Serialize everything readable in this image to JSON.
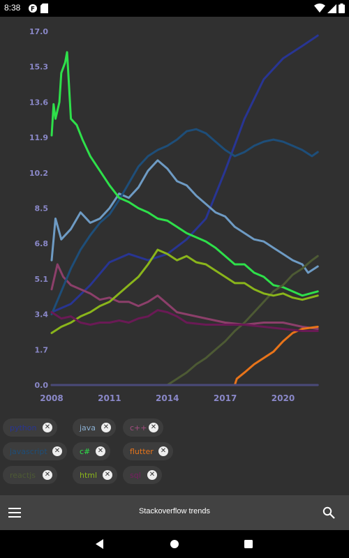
{
  "status_bar": {
    "time": "8:38",
    "left_icons": [
      "notification-icon",
      "sd-card-icon"
    ],
    "right_icons": [
      "wifi-icon",
      "signal-icon",
      "battery-icon"
    ]
  },
  "chart_data": {
    "type": "line",
    "title": "",
    "xlabel": "",
    "ylabel": "",
    "x_ticks": [
      "2008",
      "2011",
      "2014",
      "2017",
      "2020"
    ],
    "y_ticks": [
      "0.0",
      "1.7",
      "3.4",
      "5.1",
      "6.8",
      "8.5",
      "10.2",
      "11.9",
      "13.6",
      "15.3",
      "17.0"
    ],
    "xlim": [
      2008,
      2021.9
    ],
    "ylim": [
      0,
      17
    ],
    "grid": false,
    "series": [
      {
        "name": "python",
        "color": "#283593",
        "points": [
          [
            2008,
            3.5
          ],
          [
            2009,
            3.9
          ],
          [
            2010,
            4.8
          ],
          [
            2011,
            5.9
          ],
          [
            2012,
            6.3
          ],
          [
            2013,
            6.0
          ],
          [
            2014,
            6.3
          ],
          [
            2015,
            7.0
          ],
          [
            2016,
            8.0
          ],
          [
            2017,
            10.3
          ],
          [
            2018,
            12.8
          ],
          [
            2019,
            14.7
          ],
          [
            2020,
            15.7
          ],
          [
            2021,
            16.3
          ],
          [
            2021.8,
            16.8
          ]
        ]
      },
      {
        "name": "java",
        "color": "#6e9bc4",
        "points": [
          [
            2008,
            6.0
          ],
          [
            2008.2,
            8.0
          ],
          [
            2008.5,
            7.0
          ],
          [
            2009,
            7.5
          ],
          [
            2009.5,
            8.3
          ],
          [
            2010,
            7.8
          ],
          [
            2010.5,
            8.0
          ],
          [
            2011,
            8.5
          ],
          [
            2011.5,
            9.2
          ],
          [
            2012,
            9.0
          ],
          [
            2012.5,
            9.5
          ],
          [
            2013,
            10.3
          ],
          [
            2013.5,
            10.8
          ],
          [
            2014,
            10.4
          ],
          [
            2014.5,
            9.8
          ],
          [
            2015,
            9.6
          ],
          [
            2015.5,
            9.1
          ],
          [
            2016,
            8.7
          ],
          [
            2016.5,
            8.3
          ],
          [
            2017,
            8.1
          ],
          [
            2017.5,
            7.6
          ],
          [
            2018,
            7.3
          ],
          [
            2018.5,
            7.0
          ],
          [
            2019,
            6.9
          ],
          [
            2019.5,
            6.6
          ],
          [
            2020,
            6.3
          ],
          [
            2020.5,
            6.0
          ],
          [
            2021,
            5.8
          ],
          [
            2021.3,
            5.4
          ],
          [
            2021.8,
            5.7
          ]
        ]
      },
      {
        "name": "c++",
        "color": "#8c3f6a",
        "points": [
          [
            2008,
            4.6
          ],
          [
            2008.3,
            5.8
          ],
          [
            2008.6,
            5.2
          ],
          [
            2009,
            4.8
          ],
          [
            2009.5,
            4.6
          ],
          [
            2010,
            4.4
          ],
          [
            2010.5,
            4.1
          ],
          [
            2011,
            4.2
          ],
          [
            2011.5,
            4.0
          ],
          [
            2012,
            4.0
          ],
          [
            2012.5,
            3.8
          ],
          [
            2013,
            4.0
          ],
          [
            2013.5,
            4.3
          ],
          [
            2014,
            3.9
          ],
          [
            2014.5,
            3.5
          ],
          [
            2015,
            3.4
          ],
          [
            2016,
            3.2
          ],
          [
            2017,
            3.0
          ],
          [
            2018,
            2.9
          ],
          [
            2019,
            3.0
          ],
          [
            2020,
            3.0
          ],
          [
            2021,
            2.8
          ],
          [
            2021.8,
            2.7
          ]
        ]
      },
      {
        "name": "javascript",
        "color": "#1e4e79",
        "points": [
          [
            2008,
            3.4
          ],
          [
            2008.5,
            4.5
          ],
          [
            2009,
            5.6
          ],
          [
            2009.5,
            6.5
          ],
          [
            2010,
            7.2
          ],
          [
            2010.5,
            7.8
          ],
          [
            2011,
            8.2
          ],
          [
            2011.5,
            8.9
          ],
          [
            2012,
            9.7
          ],
          [
            2012.5,
            10.5
          ],
          [
            2013,
            11.0
          ],
          [
            2013.5,
            11.3
          ],
          [
            2014,
            11.5
          ],
          [
            2014.5,
            11.8
          ],
          [
            2015,
            12.2
          ],
          [
            2015.5,
            12.3
          ],
          [
            2016,
            12.1
          ],
          [
            2016.5,
            11.7
          ],
          [
            2017,
            11.3
          ],
          [
            2017.5,
            11.0
          ],
          [
            2018,
            11.2
          ],
          [
            2018.5,
            11.5
          ],
          [
            2019,
            11.7
          ],
          [
            2019.5,
            11.8
          ],
          [
            2020,
            11.7
          ],
          [
            2020.5,
            11.5
          ],
          [
            2021,
            11.3
          ],
          [
            2021.5,
            11.0
          ],
          [
            2021.8,
            11.2
          ]
        ]
      },
      {
        "name": "c#",
        "color": "#2ee04a",
        "points": [
          [
            2008,
            12.0
          ],
          [
            2008.1,
            13.5
          ],
          [
            2008.2,
            12.8
          ],
          [
            2008.4,
            13.6
          ],
          [
            2008.5,
            15.0
          ],
          [
            2008.7,
            15.5
          ],
          [
            2008.8,
            16.0
          ],
          [
            2009,
            12.8
          ],
          [
            2009.3,
            12.5
          ],
          [
            2009.6,
            11.8
          ],
          [
            2010,
            11.0
          ],
          [
            2010.5,
            10.3
          ],
          [
            2011,
            9.6
          ],
          [
            2011.5,
            9.0
          ],
          [
            2012,
            8.8
          ],
          [
            2012.5,
            8.5
          ],
          [
            2013,
            8.3
          ],
          [
            2013.5,
            8.0
          ],
          [
            2014,
            7.9
          ],
          [
            2014.5,
            7.6
          ],
          [
            2015,
            7.3
          ],
          [
            2015.5,
            7.1
          ],
          [
            2016,
            6.9
          ],
          [
            2016.5,
            6.6
          ],
          [
            2017,
            6.2
          ],
          [
            2017.5,
            5.8
          ],
          [
            2018,
            5.8
          ],
          [
            2018.5,
            5.4
          ],
          [
            2019,
            5.2
          ],
          [
            2019.5,
            4.8
          ],
          [
            2020,
            4.7
          ],
          [
            2020.5,
            4.5
          ],
          [
            2021,
            4.3
          ],
          [
            2021.8,
            4.5
          ]
        ]
      },
      {
        "name": "flutter",
        "color": "#e8741a",
        "points": [
          [
            2008,
            0
          ],
          [
            2017.5,
            0
          ],
          [
            2017.6,
            0.3
          ],
          [
            2018,
            0.6
          ],
          [
            2018.5,
            1.0
          ],
          [
            2019,
            1.3
          ],
          [
            2019.5,
            1.6
          ],
          [
            2020,
            2.1
          ],
          [
            2020.5,
            2.5
          ],
          [
            2021,
            2.7
          ],
          [
            2021.8,
            2.8
          ]
        ]
      },
      {
        "name": "reactjs",
        "color": "#4d5a34",
        "points": [
          [
            2008,
            0
          ],
          [
            2014,
            0
          ],
          [
            2014.5,
            0.3
          ],
          [
            2015,
            0.6
          ],
          [
            2015.5,
            1.0
          ],
          [
            2016,
            1.3
          ],
          [
            2016.5,
            1.7
          ],
          [
            2017,
            2.1
          ],
          [
            2017.5,
            2.6
          ],
          [
            2018,
            3.0
          ],
          [
            2018.5,
            3.5
          ],
          [
            2019,
            4.0
          ],
          [
            2019.5,
            4.5
          ],
          [
            2020,
            4.8
          ],
          [
            2020.5,
            5.3
          ],
          [
            2021,
            5.6
          ],
          [
            2021.5,
            6.0
          ],
          [
            2021.8,
            6.2
          ]
        ]
      },
      {
        "name": "html",
        "color": "#8ab51b",
        "points": [
          [
            2008,
            2.5
          ],
          [
            2008.5,
            2.8
          ],
          [
            2009,
            3.0
          ],
          [
            2009.5,
            3.3
          ],
          [
            2010,
            3.5
          ],
          [
            2010.5,
            3.8
          ],
          [
            2011,
            4.0
          ],
          [
            2011.5,
            4.4
          ],
          [
            2012,
            4.8
          ],
          [
            2012.5,
            5.2
          ],
          [
            2013,
            5.8
          ],
          [
            2013.5,
            6.5
          ],
          [
            2014,
            6.3
          ],
          [
            2014.5,
            6.0
          ],
          [
            2015,
            6.2
          ],
          [
            2015.5,
            5.9
          ],
          [
            2016,
            5.8
          ],
          [
            2016.5,
            5.5
          ],
          [
            2017,
            5.2
          ],
          [
            2017.5,
            4.9
          ],
          [
            2018,
            4.9
          ],
          [
            2018.5,
            4.6
          ],
          [
            2019,
            4.4
          ],
          [
            2019.5,
            4.3
          ],
          [
            2020,
            4.4
          ],
          [
            2020.5,
            4.2
          ],
          [
            2021,
            4.1
          ],
          [
            2021.8,
            4.3
          ]
        ]
      },
      {
        "name": "sql",
        "color": "#6a1a55",
        "points": [
          [
            2008,
            3.5
          ],
          [
            2008.5,
            3.2
          ],
          [
            2009,
            3.3
          ],
          [
            2009.5,
            3.0
          ],
          [
            2010,
            2.9
          ],
          [
            2010.5,
            3.0
          ],
          [
            2011,
            3.0
          ],
          [
            2011.5,
            3.1
          ],
          [
            2012,
            3.0
          ],
          [
            2012.5,
            3.2
          ],
          [
            2013,
            3.3
          ],
          [
            2013.5,
            3.6
          ],
          [
            2014,
            3.5
          ],
          [
            2014.5,
            3.3
          ],
          [
            2015,
            3.0
          ],
          [
            2016,
            2.9
          ],
          [
            2017,
            2.9
          ],
          [
            2018,
            2.9
          ],
          [
            2019,
            2.8
          ],
          [
            2020,
            2.7
          ],
          [
            2021,
            2.6
          ],
          [
            2021.8,
            2.6
          ]
        ]
      },
      {
        "name": "baseline",
        "color": "#4a4a7a",
        "points": [
          [
            2008,
            0
          ],
          [
            2021.8,
            0
          ]
        ]
      }
    ]
  },
  "chips": [
    {
      "label": "python",
      "color": "#283593"
    },
    {
      "label": "java",
      "color": "#8bb0d3"
    },
    {
      "label": "c++",
      "color": "#a34d80"
    },
    {
      "label": "javascript",
      "color": "#1e4e79"
    },
    {
      "label": "c#",
      "color": "#2ee04a"
    },
    {
      "label": "flutter",
      "color": "#e8741a"
    },
    {
      "label": "reactjs",
      "color": "#4d5a34"
    },
    {
      "label": "html",
      "color": "#8ab51b"
    },
    {
      "label": "sql",
      "color": "#7a1d63"
    }
  ],
  "chip_close_glyph": "✕",
  "app_bar": {
    "title": "Stackoverflow trends",
    "menu_icon": "menu-icon",
    "search_icon": "search-icon"
  },
  "nav_bar": {
    "buttons": [
      "back-icon",
      "home-icon",
      "recents-icon"
    ]
  },
  "colors": {
    "background": "#303030",
    "axis_text": "#8a88c8",
    "app_bar": "#424242"
  }
}
